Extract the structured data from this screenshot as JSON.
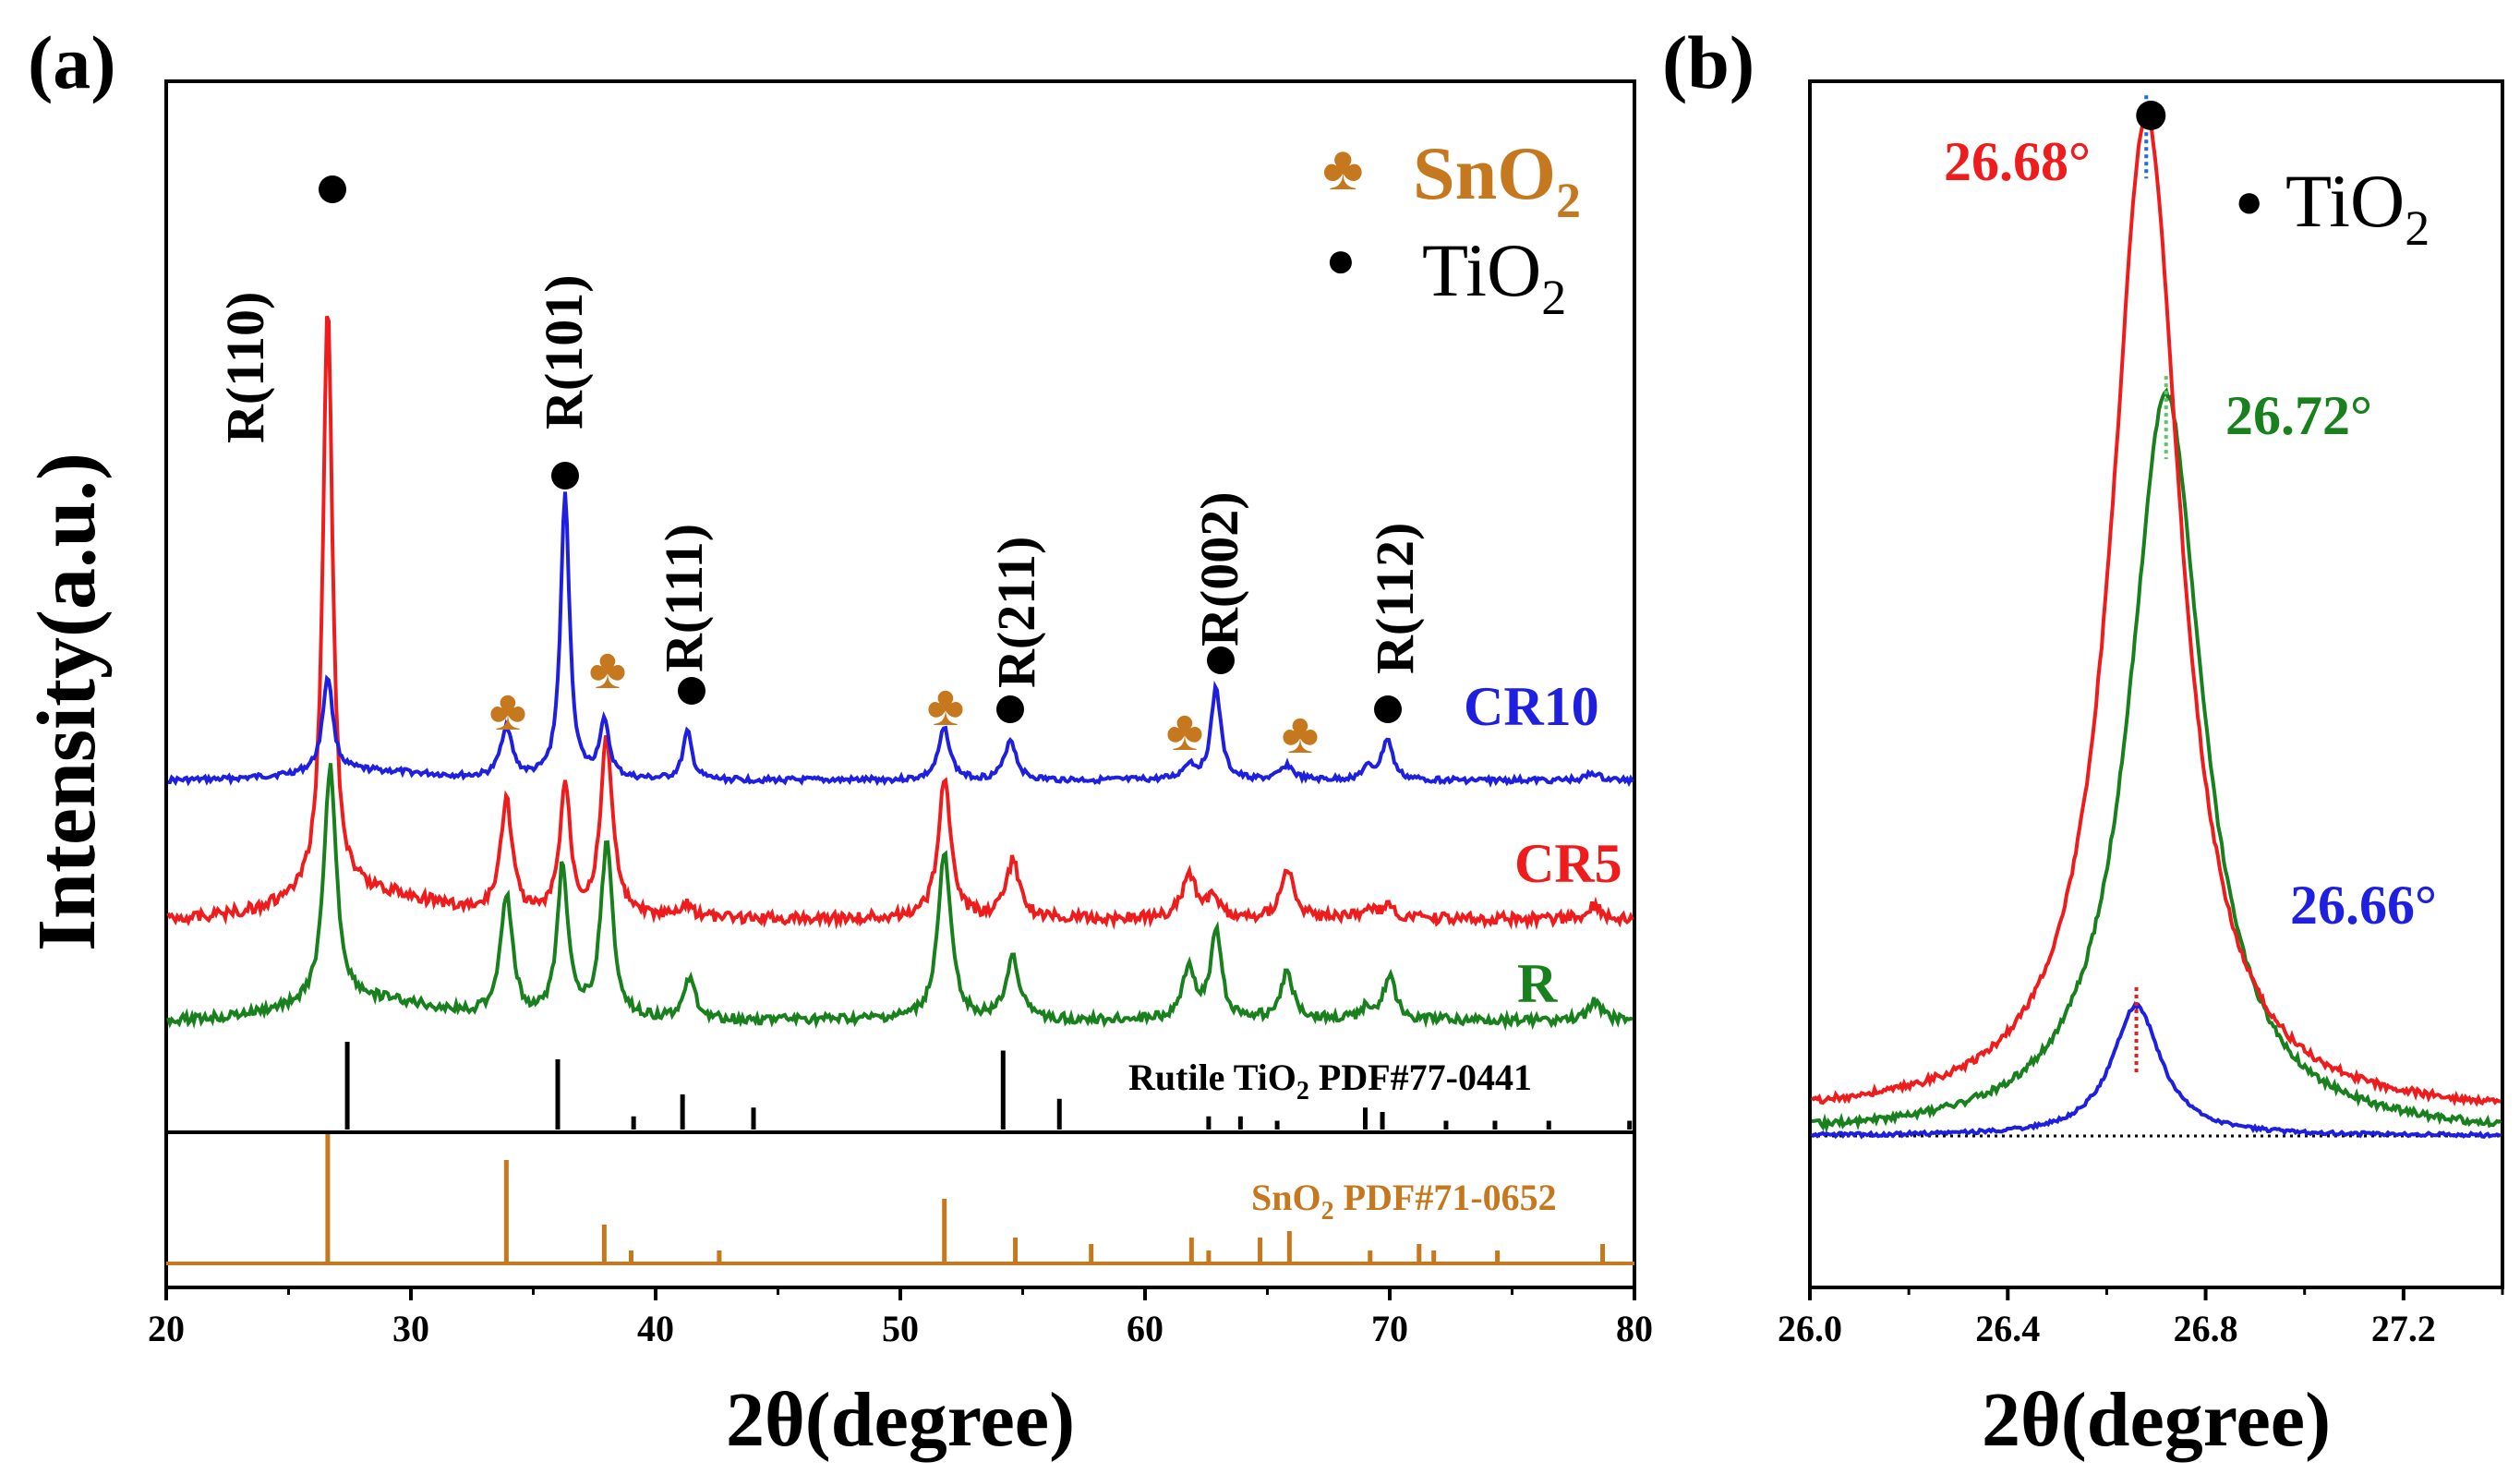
{
  "chart_data": [
    {
      "panel": "(a)",
      "type": "line",
      "xlabel": "2θ(degree)",
      "ylabel": "Intensity(a.u.)",
      "xlim": [
        20,
        80
      ],
      "xticks": [
        20,
        30,
        40,
        50,
        60,
        70,
        80
      ],
      "series": [
        {
          "name": "CR10",
          "color": "#1f1fe0",
          "baseline": 0.0,
          "peaks": [
            [
              26.6,
              1.3,
              0.25
            ],
            [
              33.9,
              0.7,
              0.28
            ],
            [
              36.3,
              3.85,
              0.22
            ],
            [
              37.9,
              0.75,
              0.25
            ],
            [
              41.3,
              0.65,
              0.22
            ],
            [
              51.8,
              0.7,
              0.28
            ],
            [
              54.5,
              0.55,
              0.28
            ],
            [
              61.8,
              0.2,
              0.3
            ],
            [
              62.9,
              1.25,
              0.24
            ],
            [
              65.8,
              0.2,
              0.3
            ],
            [
              69.1,
              0.15,
              0.3
            ],
            [
              69.9,
              0.55,
              0.26
            ],
            [
              78.3,
              0.1,
              0.3
            ]
          ]
        },
        {
          "name": "CR5",
          "color": "#ee1c1c",
          "baseline": 0.0,
          "peaks": [
            [
              26.6,
              8.3,
              0.24
            ],
            [
              33.9,
              1.6,
              0.3
            ],
            [
              36.3,
              1.85,
              0.26
            ],
            [
              38.0,
              2.5,
              0.3
            ],
            [
              41.3,
              0.2,
              0.26
            ],
            [
              51.8,
              2.0,
              0.3
            ],
            [
              54.6,
              0.8,
              0.32
            ],
            [
              61.8,
              0.65,
              0.32
            ],
            [
              62.8,
              0.3,
              0.26
            ],
            [
              65.8,
              0.7,
              0.32
            ],
            [
              69.1,
              0.15,
              0.3
            ],
            [
              69.9,
              0.15,
              0.3
            ],
            [
              78.4,
              0.2,
              0.3
            ]
          ]
        },
        {
          "name": "R",
          "color": "#18801c",
          "baseline": 0.0,
          "peaks": [
            [
              26.7,
              3.0,
              0.3
            ],
            [
              33.9,
              1.55,
              0.3
            ],
            [
              36.2,
              1.95,
              0.26
            ],
            [
              38.0,
              2.2,
              0.3
            ],
            [
              41.4,
              0.55,
              0.26
            ],
            [
              51.8,
              2.1,
              0.32
            ],
            [
              54.6,
              0.8,
              0.32
            ],
            [
              61.8,
              0.65,
              0.32
            ],
            [
              62.9,
              1.15,
              0.26
            ],
            [
              65.8,
              0.6,
              0.32
            ],
            [
              69.1,
              0.15,
              0.3
            ],
            [
              70.0,
              0.55,
              0.3
            ],
            [
              78.4,
              0.25,
              0.3
            ]
          ]
        }
      ],
      "reference_rutile": {
        "label": "Rutile TiO2 PDF#77-0441",
        "sticks": [
          [
            27.4,
            1.0
          ],
          [
            36.0,
            0.8
          ],
          [
            39.1,
            0.15
          ],
          [
            41.1,
            0.4
          ],
          [
            44.0,
            0.25
          ],
          [
            54.2,
            0.9
          ],
          [
            56.5,
            0.35
          ],
          [
            62.6,
            0.15
          ],
          [
            63.9,
            0.15
          ],
          [
            65.4,
            0.1
          ],
          [
            69.0,
            0.25
          ],
          [
            69.7,
            0.2
          ],
          [
            72.3,
            0.1
          ],
          [
            74.3,
            0.1
          ],
          [
            76.5,
            0.1
          ],
          [
            79.8,
            0.1
          ]
        ]
      },
      "reference_sno2": {
        "label": "SnO2 PDF#71-0652",
        "sticks": [
          [
            26.6,
            1.0
          ],
          [
            33.9,
            0.8
          ],
          [
            37.9,
            0.3
          ],
          [
            39.0,
            0.1
          ],
          [
            42.6,
            0.1
          ],
          [
            51.8,
            0.5
          ],
          [
            54.7,
            0.2
          ],
          [
            57.8,
            0.15
          ],
          [
            61.9,
            0.2
          ],
          [
            62.6,
            0.1
          ],
          [
            64.7,
            0.2
          ],
          [
            65.9,
            0.25
          ],
          [
            69.2,
            0.1
          ],
          [
            71.2,
            0.15
          ],
          [
            71.8,
            0.1
          ],
          [
            74.4,
            0.1
          ],
          [
            78.7,
            0.15
          ]
        ]
      },
      "annotations": [
        {
          "text": "R(110)",
          "x": 26.6
        },
        {
          "text": "R(101)",
          "x": 36.3
        },
        {
          "text": "R(111)",
          "x": 41.5
        },
        {
          "text": "R(211)",
          "x": 54.5
        },
        {
          "text": "R(002)",
          "x": 62.9
        },
        {
          "text": "R(112)",
          "x": 69.9
        }
      ],
      "sno2_markers_x": [
        33.9,
        37.9,
        51.8,
        61.7,
        65.8
      ],
      "legend": [
        {
          "symbol": "♣",
          "text": "SnO",
          "sub": "2",
          "color": "#c6781e"
        },
        {
          "symbol": "●",
          "text": "TiO",
          "sub": "2",
          "color": "#000000"
        }
      ]
    },
    {
      "panel": "(b)",
      "type": "line",
      "xlabel": "2θ(degree)",
      "xlim": [
        26.0,
        27.4
      ],
      "xticks": [
        26.0,
        26.4,
        26.8,
        27.2
      ],
      "series": [
        {
          "name": "CR5",
          "color": "#ee1c1c",
          "peak_x": 26.68,
          "height": 1.0,
          "width": 0.085,
          "offset": 0.02,
          "label": "26.68°"
        },
        {
          "name": "R",
          "color": "#18801c",
          "peak_x": 26.72,
          "height": 0.74,
          "width": 0.09,
          "offset": 0.0,
          "label": "26.72°"
        },
        {
          "name": "CR10",
          "color": "#1f1fe0",
          "peak_x": 26.66,
          "height": 0.13,
          "width": 0.06,
          "offset": 0.0,
          "label": "26.66°"
        }
      ],
      "legend": [
        {
          "symbol": "●",
          "text": "TiO",
          "sub": "2",
          "color": "#000000"
        }
      ]
    }
  ],
  "labels": {
    "panel_a": "(a)",
    "panel_b": "(b)",
    "cr10": "CR10",
    "cr5": "CR5",
    "r": "R",
    "rutile_ref_prefix": "Rutile TiO",
    "rutile_ref_sub": "2",
    "rutile_ref_suffix": " PDF#77-0441",
    "sno2_ref_prefix": "SnO",
    "sno2_ref_sub": "2",
    "sno2_ref_suffix": " PDF#71-0652",
    "peak_r_cr5": "26.68°",
    "peak_r_r": "26.72°",
    "peak_r_cr10": "26.66°",
    "xlabel_a": "2θ(degree)",
    "xlabel_b": "2θ(degree)",
    "ylabel": "Intensity(a.u.)"
  }
}
